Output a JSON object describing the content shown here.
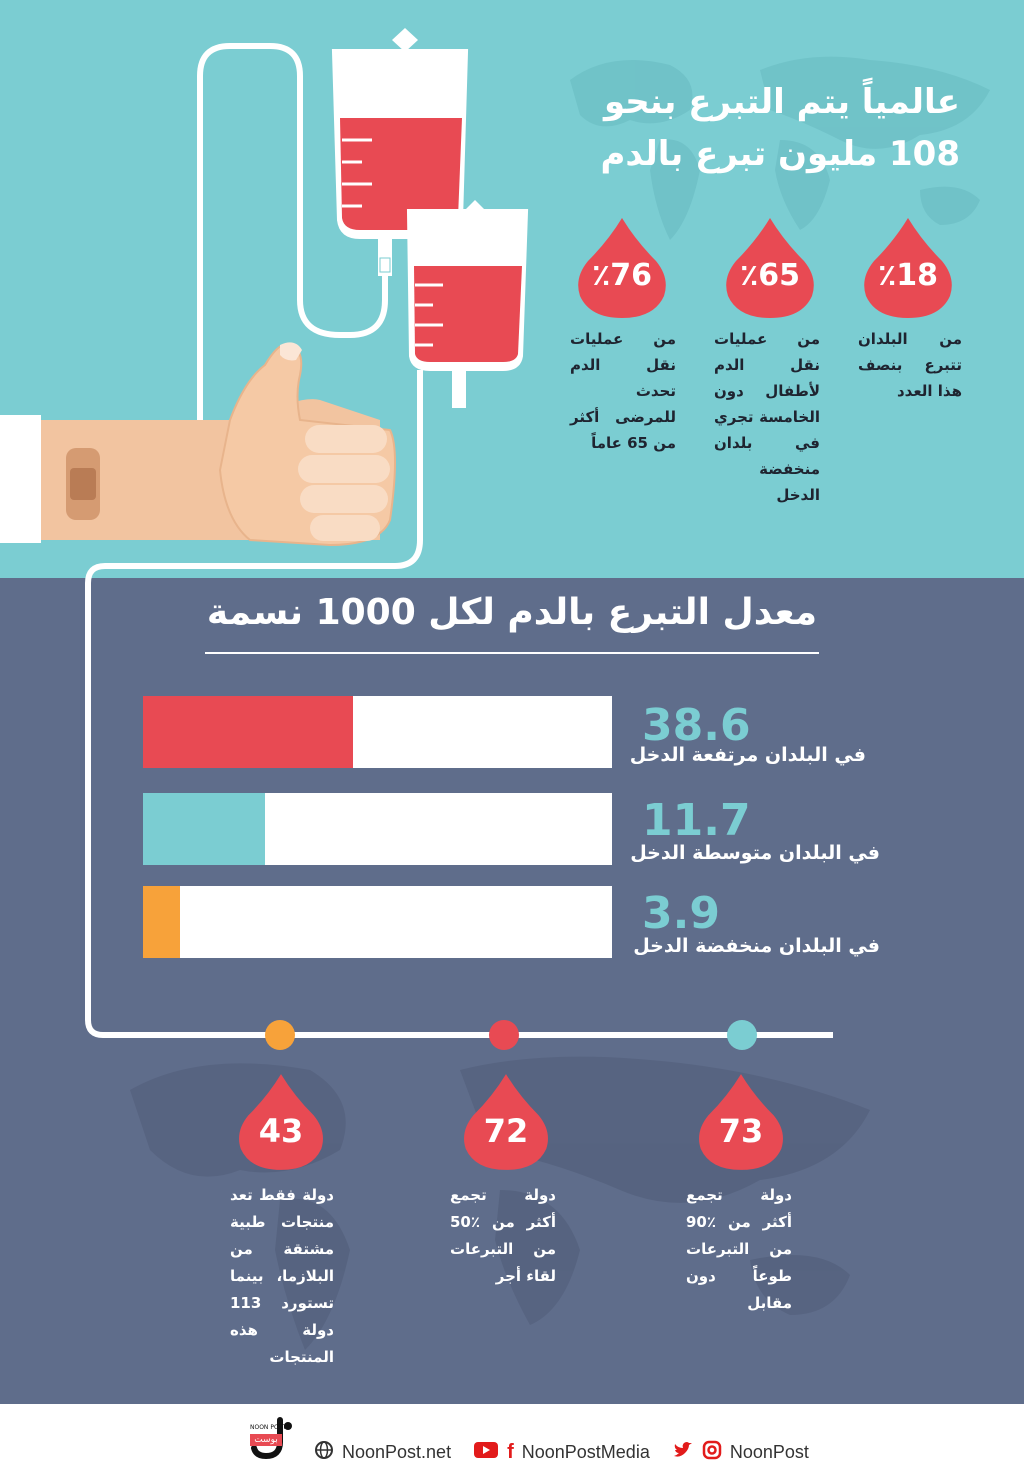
{
  "headline": {
    "line1": "عالمياً يتم التبرع بنحو",
    "line2": "108 مليون تبرع بالدم"
  },
  "top_stats": [
    {
      "value": "٪18",
      "text": "من البلدان تتبرع بنصف هذا العدد"
    },
    {
      "value": "٪65",
      "text": "من عمليات نقل الدم لأطفال دون الخامسة تجري في بلدان منخفضة الدخل"
    },
    {
      "value": "٪76",
      "text": "من عمليات نقل الدم تحدث للمرضى أكثر من 65 عاماً"
    }
  ],
  "section_title": "معدل التبرع بالدم لكل 1000 نسمة",
  "bars": [
    {
      "value": "38.6",
      "label": "في البلدان مرتفعة الدخل",
      "fill": 0.447,
      "color": "#e84a53"
    },
    {
      "value": "11.7",
      "label": "في البلدان متوسطة الدخل",
      "fill": 0.26,
      "color": "#7bcdd2"
    },
    {
      "value": "3.9",
      "label": "في البلدان منخفضة الدخل",
      "fill": 0.078,
      "color": "#f7a23a"
    }
  ],
  "bottom_stats": [
    {
      "value": "73",
      "text": "دولة تجمع أكثر من ٪90 من التبرعات طوعاً دون مقابل",
      "dot": "#7bcdd2"
    },
    {
      "value": "72",
      "text": "دولة تجمع أكثر من ٪50 من التبرعات لقاء أجر",
      "dot": "#e84a53"
    },
    {
      "value": "43",
      "text": "دولة فقط تعد منتجات طبية مشتقة من البلازما، بينما تستورد 113 دولة هذه المنتجات",
      "dot": "#f7a23a"
    }
  ],
  "footer": {
    "logo_small": "NOON POST",
    "logo_tag": "بوست",
    "website": "NoonPost.net",
    "media": "NoonPostMedia",
    "handle": "NoonPost",
    "icons": [
      "globe-icon",
      "youtube-icon",
      "facebook-icon",
      "twitter-icon",
      "instagram-icon"
    ]
  },
  "colors": {
    "teal": "#7bcdd2",
    "slate": "#5f6d8b",
    "red": "#e84a53",
    "orange": "#f7a23a"
  }
}
